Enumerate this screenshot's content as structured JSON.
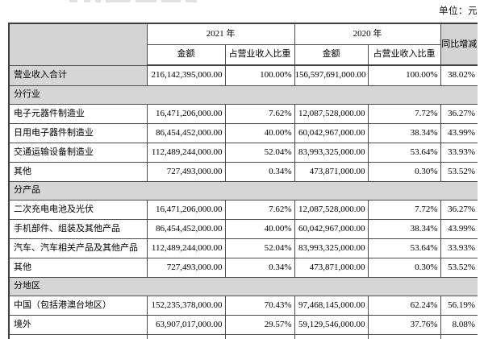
{
  "page": {
    "unit_label": "单位：元"
  },
  "colors": {
    "shaded_bg": "#d6d6d6",
    "header_blank_bg": "#d4d4d4",
    "border": "#4c4c4c"
  },
  "table": {
    "header": {
      "blank": "",
      "year_2021": "2021 年",
      "year_2020": "2020 年",
      "amount_2021": "金额",
      "share_2021": "占营业收入比重",
      "amount_2020": "金额",
      "share_2020": "占营业收入比重",
      "yoy": "同比增减"
    },
    "rows": [
      {
        "type": "data",
        "shaded_label": true,
        "label": "营业收入合计",
        "a2021": "216,142,395,000.00",
        "p2021": "100.00%",
        "a2020": "156,597,691,000.00",
        "p2020": "100.00%",
        "yoy": "38.02%"
      },
      {
        "type": "section",
        "label": "分行业"
      },
      {
        "type": "data",
        "label": "电子元器件制造业",
        "a2021": "16,471,206,000.00",
        "p2021": "7.62%",
        "a2020": "12,087,528,000.00",
        "p2020": "7.72%",
        "yoy": "36.27%"
      },
      {
        "type": "data",
        "label": "日用电子器件制造业",
        "a2021": "86,454,452,000.00",
        "p2021": "40.00%",
        "a2020": "60,042,967,000.00",
        "p2020": "38.34%",
        "yoy": "43.99%"
      },
      {
        "type": "data",
        "label": "交通运输设备制造业",
        "a2021": "112,489,244,000.00",
        "p2021": "52.04%",
        "a2020": "83,993,325,000.00",
        "p2020": "53.64%",
        "yoy": "33.93%"
      },
      {
        "type": "data",
        "label": "其他",
        "a2021": "727,493,000.00",
        "p2021": "0.34%",
        "a2020": "473,871,000.00",
        "p2020": "0.30%",
        "yoy": "53.52%"
      },
      {
        "type": "section",
        "label": "分产品"
      },
      {
        "type": "data",
        "label": "二次充电电池及光伏",
        "a2021": "16,471,206,000.00",
        "p2021": "7.62%",
        "a2020": "12,087,528,000.00",
        "p2020": "7.72%",
        "yoy": "36.27%"
      },
      {
        "type": "data",
        "label": "手机部件、组装及其他产品",
        "a2021": "86,454,452,000.00",
        "p2021": "40.00%",
        "a2020": "60,042,967,000.00",
        "p2020": "38.34%",
        "yoy": "43.99%"
      },
      {
        "type": "data",
        "label": "汽车、汽车相关产品及其他产品",
        "a2021": "112,489,244,000.00",
        "p2021": "52.04%",
        "a2020": "83,993,325,000.00",
        "p2020": "53.64%",
        "yoy": "33.93%"
      },
      {
        "type": "data",
        "label": "其他",
        "a2021": "727,493,000.00",
        "p2021": "0.34%",
        "a2020": "473,871,000.00",
        "p2020": "0.30%",
        "yoy": "53.52%"
      },
      {
        "type": "section",
        "label": "分地区"
      },
      {
        "type": "data",
        "label": "中国（包括港澳台地区）",
        "a2021": "152,235,378,000.00",
        "p2021": "70.43%",
        "a2020": "97,468,145,000.00",
        "p2020": "62.24%",
        "yoy": "56.19%"
      },
      {
        "type": "data",
        "label": "境外",
        "a2021": "63,907,017,000.00",
        "p2021": "29.57%",
        "a2020": "59,129,546,000.00",
        "p2020": "37.76%",
        "yoy": "8.08%"
      }
    ]
  }
}
